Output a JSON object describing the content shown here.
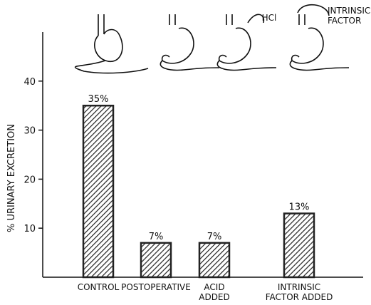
{
  "chart_data": {
    "type": "bar",
    "categories": [
      "CONTROL",
      "POSTOPERATIVE",
      "ACID\nADDED",
      "INTRINSIC\nFACTOR ADDED"
    ],
    "values": [
      35,
      7,
      7,
      13
    ],
    "value_labels": [
      "35%",
      "7%",
      "7%",
      "13%"
    ],
    "y_label": "% URINARY EXCRETION",
    "annotations": [
      "HCl",
      "INTRINSIC\nFACTOR"
    ],
    "color": "#222222",
    "ylim": [
      0,
      50
    ],
    "yticks": [
      10,
      20,
      30,
      40
    ]
  }
}
